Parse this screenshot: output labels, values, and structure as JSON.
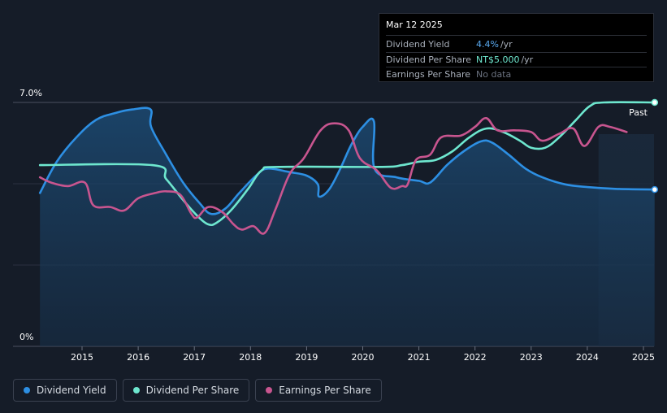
{
  "chart_data": {
    "type": "line",
    "x_ticks": [
      "2015",
      "2016",
      "2017",
      "2018",
      "2019",
      "2020",
      "2021",
      "2022",
      "2023",
      "2024",
      "2025"
    ],
    "y_labels": [
      "7.0%",
      "0%"
    ],
    "ylim": [
      0,
      7.0
    ],
    "past_label": "Past",
    "series": [
      {
        "name": "Dividend Yield",
        "color": "#2d8fe3",
        "filled": true,
        "points": [
          [
            2014.25,
            4.4
          ],
          [
            2014.55,
            5.3
          ],
          [
            2014.9,
            6.0
          ],
          [
            2015.25,
            6.5
          ],
          [
            2015.6,
            6.7
          ],
          [
            2015.9,
            6.8
          ],
          [
            2016.22,
            6.8
          ],
          [
            2016.23,
            6.3
          ],
          [
            2016.5,
            5.5
          ],
          [
            2016.8,
            4.7
          ],
          [
            2017.1,
            4.1
          ],
          [
            2017.3,
            3.8
          ],
          [
            2017.55,
            3.95
          ],
          [
            2017.8,
            4.4
          ],
          [
            2018.1,
            4.9
          ],
          [
            2018.3,
            5.1
          ],
          [
            2018.7,
            5.0
          ],
          [
            2019.0,
            4.9
          ],
          [
            2019.2,
            4.65
          ],
          [
            2019.22,
            4.3
          ],
          [
            2019.4,
            4.5
          ],
          [
            2019.6,
            5.1
          ],
          [
            2019.8,
            5.8
          ],
          [
            2020.0,
            6.3
          ],
          [
            2020.2,
            6.45
          ],
          [
            2020.21,
            5.1
          ],
          [
            2020.6,
            4.85
          ],
          [
            2021.0,
            4.75
          ],
          [
            2021.2,
            4.7
          ],
          [
            2021.5,
            5.2
          ],
          [
            2021.8,
            5.6
          ],
          [
            2022.1,
            5.88
          ],
          [
            2022.3,
            5.85
          ],
          [
            2022.6,
            5.5
          ],
          [
            2022.9,
            5.1
          ],
          [
            2023.2,
            4.85
          ],
          [
            2023.6,
            4.65
          ],
          [
            2024.0,
            4.57
          ],
          [
            2024.5,
            4.52
          ],
          [
            2025.2,
            4.5
          ]
        ]
      },
      {
        "name": "Dividend Per Share",
        "color": "#6ee7cf",
        "filled": false,
        "points": [
          [
            2014.25,
            5.2
          ],
          [
            2016.25,
            5.2
          ],
          [
            2016.5,
            4.8
          ],
          [
            2016.8,
            4.2
          ],
          [
            2017.05,
            3.75
          ],
          [
            2017.25,
            3.5
          ],
          [
            2017.4,
            3.55
          ],
          [
            2017.65,
            3.9
          ],
          [
            2017.95,
            4.5
          ],
          [
            2018.2,
            5.05
          ],
          [
            2018.5,
            5.15
          ],
          [
            2020.3,
            5.15
          ],
          [
            2020.7,
            5.2
          ],
          [
            2021.0,
            5.3
          ],
          [
            2021.3,
            5.35
          ],
          [
            2021.6,
            5.6
          ],
          [
            2021.9,
            6.0
          ],
          [
            2022.2,
            6.25
          ],
          [
            2022.5,
            6.15
          ],
          [
            2022.8,
            5.9
          ],
          [
            2023.0,
            5.7
          ],
          [
            2023.25,
            5.7
          ],
          [
            2023.5,
            6.0
          ],
          [
            2023.8,
            6.5
          ],
          [
            2024.05,
            6.9
          ],
          [
            2024.3,
            7.0
          ],
          [
            2025.2,
            7.0
          ]
        ]
      },
      {
        "name": "Earnings Per Share",
        "color": "#c8558f",
        "filled": false,
        "points": [
          [
            2014.25,
            4.85
          ],
          [
            2014.45,
            4.7
          ],
          [
            2014.75,
            4.6
          ],
          [
            2015.05,
            4.7
          ],
          [
            2015.2,
            4.05
          ],
          [
            2015.5,
            4.0
          ],
          [
            2015.75,
            3.9
          ],
          [
            2016.0,
            4.25
          ],
          [
            2016.3,
            4.4
          ],
          [
            2016.5,
            4.45
          ],
          [
            2016.75,
            4.35
          ],
          [
            2016.95,
            3.8
          ],
          [
            2017.05,
            3.7
          ],
          [
            2017.25,
            4.0
          ],
          [
            2017.5,
            3.85
          ],
          [
            2017.7,
            3.5
          ],
          [
            2017.85,
            3.35
          ],
          [
            2018.05,
            3.45
          ],
          [
            2018.25,
            3.25
          ],
          [
            2018.45,
            3.95
          ],
          [
            2018.7,
            4.95
          ],
          [
            2018.95,
            5.4
          ],
          [
            2019.25,
            6.2
          ],
          [
            2019.5,
            6.4
          ],
          [
            2019.75,
            6.2
          ],
          [
            2019.95,
            5.4
          ],
          [
            2020.25,
            5.05
          ],
          [
            2020.5,
            4.55
          ],
          [
            2020.7,
            4.6
          ],
          [
            2020.8,
            4.65
          ],
          [
            2020.95,
            5.35
          ],
          [
            2021.2,
            5.5
          ],
          [
            2021.4,
            6.0
          ],
          [
            2021.75,
            6.05
          ],
          [
            2022.0,
            6.3
          ],
          [
            2022.2,
            6.55
          ],
          [
            2022.4,
            6.2
          ],
          [
            2022.7,
            6.2
          ],
          [
            2023.0,
            6.15
          ],
          [
            2023.2,
            5.9
          ],
          [
            2023.5,
            6.1
          ],
          [
            2023.75,
            6.25
          ],
          [
            2023.95,
            5.75
          ],
          [
            2024.2,
            6.3
          ],
          [
            2024.4,
            6.3
          ],
          [
            2024.7,
            6.15
          ]
        ]
      }
    ]
  },
  "tooltip": {
    "date": "Mar 12 2025",
    "rows": [
      {
        "label": "Dividend Yield",
        "value": "4.4%",
        "unit": "/yr"
      },
      {
        "label": "Dividend Per Share",
        "value": "NT$5.000",
        "unit": "/yr"
      },
      {
        "label": "Earnings Per Share",
        "value": "No data",
        "unit": ""
      }
    ]
  },
  "legend": [
    {
      "label": "Dividend Yield",
      "color": "#2d8fe3"
    },
    {
      "label": "Dividend Per Share",
      "color": "#6ee7cf"
    },
    {
      "label": "Earnings Per Share",
      "color": "#c8558f"
    }
  ]
}
